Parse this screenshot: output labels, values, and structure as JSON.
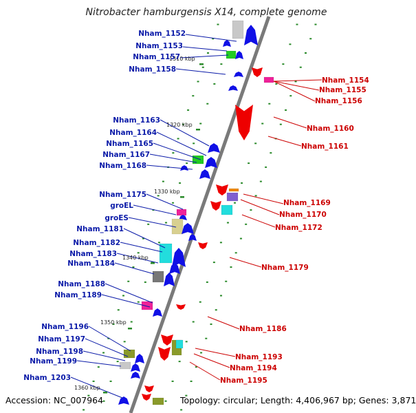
{
  "title": "Nitrobacter hamburgensis X14, complete genome",
  "footer": {
    "accession": "Accession: NC_007964",
    "topology": "Topology: circular; Length: 4,406,967 bp; Genes: 3,871"
  },
  "colors": {
    "forward_label": "#0a1aa8",
    "reverse_label": "#cc0000",
    "backbone": "#7a7a7a",
    "tick": "#2a8a2a",
    "forward_gene": "#1010e6",
    "reverse_gene": "#ee0000"
  },
  "kbp_markers": [
    "1310 kbp",
    "1320 kbp",
    "1330 kbp",
    "1340 kbp",
    "1350 kbp",
    "1360 kbp"
  ],
  "left_labels": [
    "Nham_1152",
    "Nham_1153",
    "Nham_1157",
    "Nham_1158",
    "Nham_1163",
    "Nham_1164",
    "Nham_1165",
    "Nham_1167",
    "Nham_1168",
    "Nham_1175",
    "groEL",
    "groES",
    "Nham_1181",
    "Nham_1182",
    "Nham_1183",
    "Nham_1184",
    "Nham_1188",
    "Nham_1189",
    "Nham_1196",
    "Nham_1197",
    "Nham_1198",
    "Nham_1199",
    "Nham_1203"
  ],
  "right_labels": [
    "Nham_1154",
    "Nham_1155",
    "Nham_1156",
    "Nham_1160",
    "Nham_1161",
    "Nham_1169",
    "Nham_1170",
    "Nham_1172",
    "Nham_1179",
    "Nham_1186",
    "Nham_1193",
    "Nham_1194",
    "Nham_1195"
  ]
}
